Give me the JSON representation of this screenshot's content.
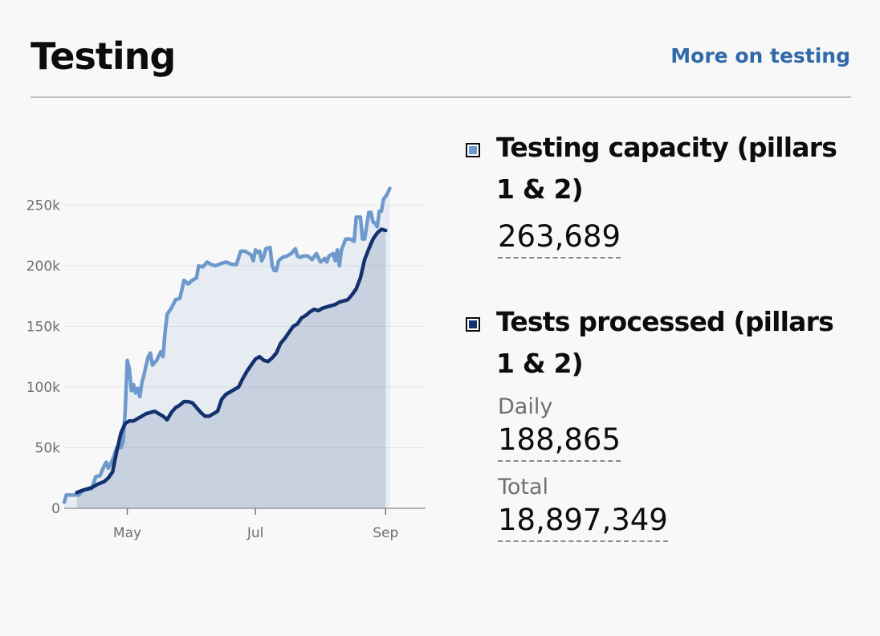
{
  "header": {
    "title": "Testing",
    "more_link": "More on testing"
  },
  "legend": {
    "capacity": {
      "label": "Testing capacity (pillars 1 & 2)",
      "value": "263,689",
      "color": "#6e99cc"
    },
    "processed": {
      "label": "Tests processed (pillars 1 & 2)",
      "daily_label": "Daily",
      "daily_value": "188,865",
      "total_label": "Total",
      "total_value": "18,897,349",
      "color": "#12316e"
    }
  },
  "chart_data": {
    "type": "area",
    "title": "",
    "xlabel": "",
    "ylabel": "",
    "x_range": [
      "2020-04-01",
      "2020-09-20"
    ],
    "ylim": [
      0,
      280000
    ],
    "yticks": [
      0,
      50000,
      100000,
      150000,
      200000,
      250000
    ],
    "ytick_labels": [
      "0",
      "50k",
      "100k",
      "150k",
      "200k",
      "250k"
    ],
    "xticks": [
      "2020-05-01",
      "2020-07-01",
      "2020-09-01"
    ],
    "xtick_labels": [
      "May",
      "Jul",
      "Sep"
    ],
    "grid": true,
    "series": [
      {
        "name": "Testing capacity (pillars 1 & 2)",
        "color": "#6e99cc",
        "points": [
          [
            "2020-04-01",
            5000
          ],
          [
            "2020-04-02",
            11000
          ],
          [
            "2020-04-05",
            11000
          ],
          [
            "2020-04-08",
            11000
          ],
          [
            "2020-04-10",
            15000
          ],
          [
            "2020-04-14",
            16000
          ],
          [
            "2020-04-15",
            21000
          ],
          [
            "2020-04-16",
            26000
          ],
          [
            "2020-04-18",
            27000
          ],
          [
            "2020-04-20",
            35000
          ],
          [
            "2020-04-21",
            38000
          ],
          [
            "2020-04-22",
            33000
          ],
          [
            "2020-04-24",
            40000
          ],
          [
            "2020-04-25",
            45000
          ],
          [
            "2020-04-26",
            50000
          ],
          [
            "2020-04-27",
            52000
          ],
          [
            "2020-04-28",
            50000
          ],
          [
            "2020-04-29",
            55000
          ],
          [
            "2020-04-30",
            80000
          ],
          [
            "2020-05-01",
            122000
          ],
          [
            "2020-05-02",
            115000
          ],
          [
            "2020-05-03",
            97000
          ],
          [
            "2020-05-04",
            102000
          ],
          [
            "2020-05-05",
            95000
          ],
          [
            "2020-05-06",
            99000
          ],
          [
            "2020-05-07",
            92000
          ],
          [
            "2020-05-08",
            104000
          ],
          [
            "2020-05-09",
            110000
          ],
          [
            "2020-05-10",
            118000
          ],
          [
            "2020-05-11",
            125000
          ],
          [
            "2020-05-12",
            128000
          ],
          [
            "2020-05-13",
            118000
          ],
          [
            "2020-05-15",
            122000
          ],
          [
            "2020-05-17",
            129000
          ],
          [
            "2020-05-18",
            125000
          ],
          [
            "2020-05-19",
            145000
          ],
          [
            "2020-05-20",
            160000
          ],
          [
            "2020-05-22",
            165000
          ],
          [
            "2020-05-24",
            172000
          ],
          [
            "2020-05-26",
            173000
          ],
          [
            "2020-05-27",
            180000
          ],
          [
            "2020-05-28",
            188000
          ],
          [
            "2020-05-30",
            185000
          ],
          [
            "2020-06-01",
            188000
          ],
          [
            "2020-06-03",
            190000
          ],
          [
            "2020-06-04",
            200000
          ],
          [
            "2020-06-06",
            199000
          ],
          [
            "2020-06-08",
            203000
          ],
          [
            "2020-06-10",
            201000
          ],
          [
            "2020-06-12",
            200000
          ],
          [
            "2020-06-15",
            202000
          ],
          [
            "2020-06-17",
            203000
          ],
          [
            "2020-06-20",
            201000
          ],
          [
            "2020-06-22",
            201000
          ],
          [
            "2020-06-24",
            212000
          ],
          [
            "2020-06-26",
            212000
          ],
          [
            "2020-06-28",
            210000
          ],
          [
            "2020-06-29",
            209000
          ],
          [
            "2020-06-30",
            204000
          ],
          [
            "2020-07-01",
            213000
          ],
          [
            "2020-07-02",
            211000
          ],
          [
            "2020-07-03",
            212000
          ],
          [
            "2020-07-04",
            204000
          ],
          [
            "2020-07-05",
            208000
          ],
          [
            "2020-07-06",
            214000
          ],
          [
            "2020-07-08",
            215000
          ],
          [
            "2020-07-09",
            200000
          ],
          [
            "2020-07-10",
            196000
          ],
          [
            "2020-07-11",
            196000
          ],
          [
            "2020-07-12",
            204000
          ],
          [
            "2020-07-14",
            207000
          ],
          [
            "2020-07-16",
            208000
          ],
          [
            "2020-07-18",
            210000
          ],
          [
            "2020-07-20",
            214000
          ],
          [
            "2020-07-21",
            208000
          ],
          [
            "2020-07-22",
            207000
          ],
          [
            "2020-07-24",
            208000
          ],
          [
            "2020-07-26",
            208000
          ],
          [
            "2020-07-28",
            205000
          ],
          [
            "2020-07-30",
            210000
          ],
          [
            "2020-08-01",
            203000
          ],
          [
            "2020-08-03",
            206000
          ],
          [
            "2020-08-04",
            203000
          ],
          [
            "2020-08-05",
            208000
          ],
          [
            "2020-08-07",
            210000
          ],
          [
            "2020-08-08",
            204000
          ],
          [
            "2020-08-09",
            213000
          ],
          [
            "2020-08-10",
            200000
          ],
          [
            "2020-08-11",
            213000
          ],
          [
            "2020-08-13",
            222000
          ],
          [
            "2020-08-15",
            222000
          ],
          [
            "2020-08-17",
            220000
          ],
          [
            "2020-08-18",
            240000
          ],
          [
            "2020-08-20",
            240000
          ],
          [
            "2020-08-21",
            222000
          ],
          [
            "2020-08-22",
            222000
          ],
          [
            "2020-08-23",
            233000
          ],
          [
            "2020-08-24",
            244000
          ],
          [
            "2020-08-25",
            244000
          ],
          [
            "2020-08-26",
            236000
          ],
          [
            "2020-08-27",
            235000
          ],
          [
            "2020-08-28",
            232000
          ],
          [
            "2020-08-29",
            245000
          ],
          [
            "2020-08-30",
            245000
          ],
          [
            "2020-08-31",
            255000
          ],
          [
            "2020-09-01",
            257000
          ],
          [
            "2020-09-02",
            260000
          ],
          [
            "2020-09-03",
            263689
          ]
        ]
      },
      {
        "name": "Tests processed (pillars 1 & 2)",
        "color": "#12316e",
        "points": [
          [
            "2020-04-07",
            13000
          ],
          [
            "2020-04-10",
            15000
          ],
          [
            "2020-04-14",
            17000
          ],
          [
            "2020-04-17",
            20000
          ],
          [
            "2020-04-20",
            22000
          ],
          [
            "2020-04-22",
            25000
          ],
          [
            "2020-04-24",
            30000
          ],
          [
            "2020-04-26",
            47000
          ],
          [
            "2020-04-28",
            62000
          ],
          [
            "2020-04-30",
            70000
          ],
          [
            "2020-05-02",
            72000
          ],
          [
            "2020-05-04",
            72000
          ],
          [
            "2020-05-06",
            74000
          ],
          [
            "2020-05-08",
            76000
          ],
          [
            "2020-05-10",
            78000
          ],
          [
            "2020-05-12",
            79000
          ],
          [
            "2020-05-14",
            80000
          ],
          [
            "2020-05-16",
            78000
          ],
          [
            "2020-05-18",
            76000
          ],
          [
            "2020-05-20",
            73000
          ],
          [
            "2020-05-22",
            79000
          ],
          [
            "2020-05-24",
            83000
          ],
          [
            "2020-05-26",
            85000
          ],
          [
            "2020-05-28",
            88000
          ],
          [
            "2020-05-30",
            88000
          ],
          [
            "2020-06-01",
            87000
          ],
          [
            "2020-06-03",
            83000
          ],
          [
            "2020-06-05",
            79000
          ],
          [
            "2020-06-07",
            76000
          ],
          [
            "2020-06-09",
            76000
          ],
          [
            "2020-06-11",
            78000
          ],
          [
            "2020-06-13",
            80000
          ],
          [
            "2020-06-15",
            90000
          ],
          [
            "2020-06-17",
            94000
          ],
          [
            "2020-06-19",
            96000
          ],
          [
            "2020-06-21",
            98000
          ],
          [
            "2020-06-23",
            100000
          ],
          [
            "2020-06-25",
            107000
          ],
          [
            "2020-06-27",
            113000
          ],
          [
            "2020-06-29",
            118000
          ],
          [
            "2020-07-01",
            123000
          ],
          [
            "2020-07-03",
            125000
          ],
          [
            "2020-07-05",
            122000
          ],
          [
            "2020-07-07",
            121000
          ],
          [
            "2020-07-09",
            124000
          ],
          [
            "2020-07-11",
            128000
          ],
          [
            "2020-07-13",
            136000
          ],
          [
            "2020-07-15",
            140000
          ],
          [
            "2020-07-17",
            145000
          ],
          [
            "2020-07-19",
            150000
          ],
          [
            "2020-07-21",
            152000
          ],
          [
            "2020-07-23",
            157000
          ],
          [
            "2020-07-25",
            159000
          ],
          [
            "2020-07-27",
            162000
          ],
          [
            "2020-07-29",
            164000
          ],
          [
            "2020-07-31",
            163000
          ],
          [
            "2020-08-02",
            165000
          ],
          [
            "2020-08-04",
            166000
          ],
          [
            "2020-08-06",
            167000
          ],
          [
            "2020-08-08",
            168000
          ],
          [
            "2020-08-10",
            170000
          ],
          [
            "2020-08-12",
            171000
          ],
          [
            "2020-08-14",
            172000
          ],
          [
            "2020-08-16",
            176000
          ],
          [
            "2020-08-18",
            181000
          ],
          [
            "2020-08-20",
            190000
          ],
          [
            "2020-08-22",
            205000
          ],
          [
            "2020-08-24",
            214000
          ],
          [
            "2020-08-26",
            222000
          ],
          [
            "2020-08-28",
            227000
          ],
          [
            "2020-08-30",
            230000
          ],
          [
            "2020-09-01",
            229000
          ]
        ]
      }
    ]
  }
}
